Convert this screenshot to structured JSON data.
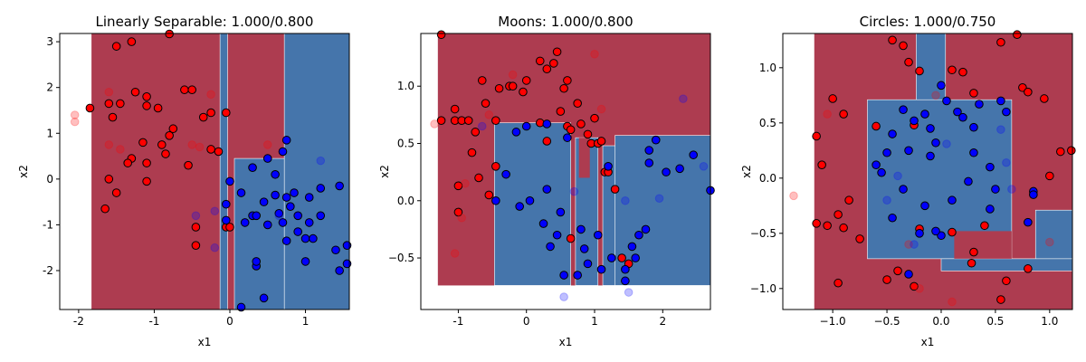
{
  "chart_data": [
    {
      "type": "scatter",
      "title": "Linearly Separable: 1.000/0.800",
      "xlabel": "x1",
      "ylabel": "x2",
      "xlim": [
        -2.25,
        1.58
      ],
      "ylim": [
        -2.85,
        3.18
      ],
      "xticks": [
        -2,
        -1,
        0,
        1
      ],
      "yticks": [
        -2,
        -1,
        0,
        1,
        2,
        3
      ],
      "regions": [
        {
          "color": "#ad3c50",
          "x": [
            -1.83,
            1.58
          ],
          "y": [
            -2.85,
            3.18
          ]
        },
        {
          "color": "#4575ab",
          "x": [
            0.72,
            1.58
          ],
          "y": [
            -2.85,
            3.18
          ]
        },
        {
          "color": "#4575ab",
          "x": [
            0.06,
            0.72
          ],
          "y": [
            -2.85,
            0.45
          ]
        },
        {
          "color": "#4575ab",
          "x": [
            -0.13,
            -0.03
          ],
          "y": [
            -2.85,
            3.18
          ]
        }
      ],
      "series": [
        {
          "color": "#ff0000",
          "opacity": 1,
          "x": [
            -1.85,
            -1.5,
            -1.3,
            -0.8,
            -1.25,
            -1.1,
            -1.1,
            -0.95,
            -1.6,
            -1.55,
            -1.45,
            -0.6,
            -0.5,
            -0.35,
            -0.25,
            -0.05,
            -0.75,
            -0.9,
            -0.85,
            -1.15,
            -1.3,
            -1.35,
            -1.1,
            -1.6,
            -1.5,
            -1.1,
            -0.55,
            -0.25,
            -0.15,
            -1.65,
            -0.45,
            -0.45,
            -0.05,
            0.0,
            -0.8
          ],
          "y": [
            1.55,
            2.9,
            3.0,
            3.17,
            1.9,
            1.8,
            1.6,
            1.55,
            1.65,
            1.35,
            1.65,
            1.95,
            1.95,
            1.35,
            1.45,
            1.45,
            1.1,
            0.75,
            0.55,
            0.8,
            0.45,
            0.35,
            0.35,
            0.0,
            -0.3,
            -0.05,
            0.3,
            0.65,
            0.6,
            -0.65,
            -1.05,
            -1.45,
            -1.05,
            -1.05,
            0.95
          ]
        },
        {
          "color": "#0000ff",
          "opacity": 1,
          "x": [
            0.0,
            -0.05,
            -0.05,
            0.15,
            0.3,
            0.5,
            0.6,
            0.75,
            0.7,
            0.45,
            0.6,
            0.75,
            0.85,
            0.8,
            0.9,
            1.05,
            1.2,
            1.45,
            1.05,
            1.2,
            0.3,
            0.35,
            0.2,
            0.5,
            0.65,
            0.7,
            0.75,
            0.9,
            1.0,
            1.1,
            1.4,
            1.45,
            1.55,
            1.0,
            0.35,
            0.35,
            0.45,
            0.15,
            1.55
          ],
          "y": [
            -0.05,
            -0.55,
            -0.9,
            -0.3,
            0.25,
            0.45,
            0.1,
            0.85,
            0.6,
            -0.5,
            -0.35,
            -0.4,
            -0.3,
            -0.6,
            -0.8,
            -0.4,
            -0.2,
            -0.15,
            -0.95,
            -0.8,
            -0.8,
            -0.8,
            -0.95,
            -1.0,
            -0.75,
            -0.95,
            -1.35,
            -1.15,
            -1.3,
            -1.3,
            -1.55,
            -2.0,
            -1.85,
            -1.8,
            -1.9,
            -1.8,
            -2.6,
            -2.8,
            -1.45
          ]
        },
        {
          "color": "#ff0000",
          "opacity": 0.25,
          "x": [
            -2.05,
            -2.05,
            -1.6,
            -1.6,
            -1.45,
            -0.5,
            -0.25,
            -0.4,
            0.5
          ],
          "y": [
            1.4,
            1.25,
            0.75,
            1.9,
            0.65,
            0.75,
            1.85,
            0.7,
            0.75
          ]
        },
        {
          "color": "#0000ff",
          "opacity": 0.25,
          "x": [
            1.2,
            0.65,
            -0.45,
            -0.2,
            -0.2
          ],
          "y": [
            0.4,
            -0.8,
            -0.8,
            -0.7,
            -1.5
          ]
        }
      ]
    },
    {
      "type": "scatter",
      "title": "Moons: 1.000/0.800",
      "xlabel": "x1",
      "ylabel": "x2",
      "xlim": [
        -1.55,
        2.7
      ],
      "ylim": [
        -0.95,
        1.46
      ],
      "xticks": [
        -1,
        0,
        1,
        2
      ],
      "yticks": [
        {
          "value": -0.5,
          "label": "−0.5"
        },
        {
          "value": 0,
          "label": "0.0"
        },
        {
          "value": 0.5,
          "label": "0.5"
        },
        {
          "value": 1,
          "label": "1.0"
        }
      ],
      "regions": [
        {
          "color": "#ad3c50",
          "x": [
            -1.3,
            2.7
          ],
          "y": [
            -0.74,
            1.46
          ]
        },
        {
          "color": "#4575ab",
          "x": [
            -0.47,
            0.65
          ],
          "y": [
            -0.74,
            0.68
          ]
        },
        {
          "color": "#4575ab",
          "x": [
            0.72,
            1.05
          ],
          "y": [
            -0.74,
            0.55
          ]
        },
        {
          "color": "#4575ab",
          "x": [
            1.12,
            2.7
          ],
          "y": [
            -0.74,
            0.48
          ]
        },
        {
          "color": "#4575ab",
          "x": [
            1.3,
            2.7
          ],
          "y": [
            -0.74,
            0.57
          ]
        },
        {
          "color": "#ad3c50",
          "x": [
            0.77,
            0.93
          ],
          "y": [
            0.2,
            0.55
          ]
        }
      ],
      "series": [
        {
          "color": "#ff0000",
          "opacity": 1,
          "x": [
            -1.25,
            -1.25,
            -1.05,
            -1.05,
            -0.95,
            -0.85,
            -0.75,
            -0.6,
            -0.65,
            -0.4,
            -0.25,
            -0.2,
            -0.05,
            0.0,
            0.2,
            0.3,
            0.45,
            0.4,
            0.5,
            0.55,
            0.6,
            0.75,
            0.8,
            0.6,
            0.65,
            0.9,
            0.95,
            1.0,
            1.05,
            1.1,
            1.15,
            1.2,
            -0.45,
            -0.45,
            -0.55,
            -0.7,
            -0.8,
            -1.0,
            -1.0,
            0.65,
            0.3,
            1.3,
            1.4,
            1.5,
            0.2
          ],
          "y": [
            1.45,
            0.7,
            0.7,
            0.8,
            0.7,
            0.7,
            0.6,
            0.85,
            1.05,
            0.98,
            1.0,
            1.0,
            0.95,
            1.05,
            1.22,
            1.15,
            1.3,
            1.2,
            0.78,
            0.98,
            1.05,
            0.85,
            0.67,
            0.65,
            0.62,
            0.58,
            0.5,
            0.72,
            0.5,
            0.52,
            0.25,
            0.25,
            0.7,
            0.3,
            0.05,
            0.2,
            0.42,
            0.13,
            -0.1,
            -0.33,
            0.52,
            0.1,
            -0.5,
            -0.55,
            0.68
          ]
        },
        {
          "color": "#0000ff",
          "opacity": 1,
          "x": [
            -0.15,
            0.0,
            0.3,
            0.6,
            -0.3,
            -0.45,
            -0.1,
            0.05,
            0.3,
            0.25,
            0.45,
            0.5,
            0.35,
            0.55,
            0.75,
            0.8,
            0.85,
            0.9,
            1.05,
            1.1,
            1.2,
            1.45,
            1.45,
            1.55,
            1.6,
            1.65,
            1.75,
            1.8,
            1.8,
            1.9,
            2.05,
            2.25,
            2.45,
            2.7,
            1.25
          ],
          "y": [
            0.6,
            0.65,
            0.67,
            0.55,
            0.23,
            0.0,
            -0.05,
            0.0,
            0.1,
            -0.2,
            -0.3,
            -0.1,
            -0.4,
            -0.65,
            -0.65,
            -0.25,
            -0.42,
            -0.55,
            -0.3,
            -0.6,
            0.3,
            -0.6,
            -0.7,
            -0.4,
            -0.5,
            -0.3,
            -0.25,
            0.44,
            0.33,
            0.53,
            0.25,
            0.28,
            0.4,
            0.09,
            -0.5
          ]
        },
        {
          "color": "#ff0000",
          "opacity": 0.25,
          "x": [
            -1.35,
            -1.05,
            -0.95,
            -0.9,
            -0.55,
            -0.2,
            1.0,
            1.1
          ],
          "y": [
            0.67,
            -0.46,
            -0.15,
            0.15,
            0.75,
            1.1,
            1.28,
            0.8
          ]
        },
        {
          "color": "#0000ff",
          "opacity": 0.25,
          "x": [
            -0.65,
            0.55,
            1.5,
            2.3,
            2.6,
            1.95,
            1.45,
            0.7
          ],
          "y": [
            0.65,
            -0.84,
            -0.8,
            0.89,
            0.3,
            0.02,
            0.0,
            0.08
          ]
        }
      ]
    },
    {
      "type": "scatter",
      "title": "Circles: 1.000/0.750",
      "xlabel": "x1",
      "ylabel": "x2",
      "xlim": [
        -1.46,
        1.21
      ],
      "ylim": [
        -1.19,
        1.31
      ],
      "xticks": [
        {
          "value": -1,
          "label": "−1.0"
        },
        {
          "value": -0.5,
          "label": "−0.5"
        },
        {
          "value": 0,
          "label": "0.0"
        },
        {
          "value": 0.5,
          "label": "0.5"
        },
        {
          "value": 1,
          "label": "1.0"
        }
      ],
      "yticks": [
        {
          "value": -1,
          "label": "−1.0"
        },
        {
          "value": -0.5,
          "label": "−0.5"
        },
        {
          "value": 0,
          "label": "0.0"
        },
        {
          "value": 0.5,
          "label": "0.5"
        },
        {
          "value": 1,
          "label": "1.0"
        }
      ],
      "regions": [
        {
          "color": "#ad3c50",
          "x": [
            -1.17,
            1.21
          ],
          "y": [
            -1.19,
            1.31
          ]
        },
        {
          "color": "#4575ab",
          "x": [
            -0.68,
            0.65
          ],
          "y": [
            -0.73,
            0.71
          ]
        },
        {
          "color": "#4575ab",
          "x": [
            -0.23,
            0.04
          ],
          "y": [
            0.71,
            1.31
          ]
        },
        {
          "color": "#4575ab",
          "x": [
            0.87,
            1.21
          ],
          "y": [
            -0.75,
            -0.29
          ]
        },
        {
          "color": "#4575ab",
          "x": [
            0.0,
            1.21
          ],
          "y": [
            -0.84,
            -0.73
          ]
        },
        {
          "color": "#ad3c50",
          "x": [
            0.12,
            0.65
          ],
          "y": [
            -0.73,
            -0.48
          ]
        }
      ],
      "series": [
        {
          "color": "#ff0000",
          "opacity": 1,
          "x": [
            -1.15,
            -1.1,
            -1.0,
            -0.9,
            -0.95,
            -0.85,
            -0.75,
            -0.95,
            -0.9,
            -1.05,
            -1.15,
            -0.6,
            -0.45,
            -0.35,
            -0.3,
            -0.2,
            -0.25,
            -0.4,
            -0.25,
            0.1,
            0.2,
            0.3,
            0.55,
            0.7,
            0.75,
            0.8,
            0.95,
            1.0,
            1.1,
            1.2,
            0.8,
            0.6,
            0.55,
            0.3,
            0.28,
            -0.2,
            0.1,
            -0.5,
            0.4
          ],
          "y": [
            0.38,
            0.12,
            0.72,
            0.58,
            -0.33,
            -0.2,
            -0.55,
            -0.95,
            -0.45,
            -0.43,
            -0.41,
            0.47,
            1.25,
            1.2,
            1.05,
            0.97,
            0.48,
            -0.84,
            -0.98,
            0.98,
            0.96,
            0.77,
            1.23,
            1.3,
            0.82,
            0.78,
            0.72,
            0.02,
            0.24,
            0.25,
            -0.82,
            -0.93,
            -1.1,
            -0.67,
            -0.77,
            -0.46,
            -0.49,
            -0.92,
            -0.43
          ]
        },
        {
          "color": "#0000ff",
          "opacity": 1,
          "x": [
            -0.6,
            -0.5,
            -0.55,
            -0.45,
            -0.35,
            -0.35,
            -0.3,
            -0.25,
            -0.15,
            -0.1,
            -0.05,
            -0.1,
            0.0,
            0.05,
            0.15,
            0.2,
            0.3,
            0.35,
            0.45,
            0.55,
            0.6,
            0.5,
            0.45,
            0.3,
            0.25,
            0.1,
            0.0,
            -0.05,
            -0.2,
            -0.15,
            -0.45,
            0.85,
            0.8,
            0.85,
            -0.3
          ],
          "y": [
            0.12,
            0.23,
            0.05,
            0.4,
            0.62,
            -0.1,
            0.25,
            0.52,
            0.58,
            0.45,
            0.32,
            0.2,
            0.84,
            0.7,
            0.6,
            0.55,
            0.46,
            0.67,
            0.1,
            0.7,
            0.6,
            -0.1,
            -0.28,
            0.23,
            -0.03,
            -0.2,
            -0.52,
            -0.48,
            -0.5,
            -0.25,
            -0.36,
            -0.12,
            -0.4,
            -0.15,
            -0.87
          ]
        },
        {
          "color": "#ff0000",
          "opacity": 0.25,
          "x": [
            -1.36,
            -1.05,
            -0.3,
            -0.05,
            0.1,
            1.0,
            -0.2
          ],
          "y": [
            -0.16,
            0.58,
            -0.6,
            0.75,
            -1.12,
            -0.58,
            -1.0
          ]
        },
        {
          "color": "#0000ff",
          "opacity": 0.25,
          "x": [
            -0.5,
            -0.25,
            0.05,
            0.55,
            0.6,
            0.65,
            -0.4
          ],
          "y": [
            -0.2,
            -0.6,
            0.31,
            0.44,
            0.14,
            -0.1,
            0.02
          ]
        }
      ]
    }
  ]
}
